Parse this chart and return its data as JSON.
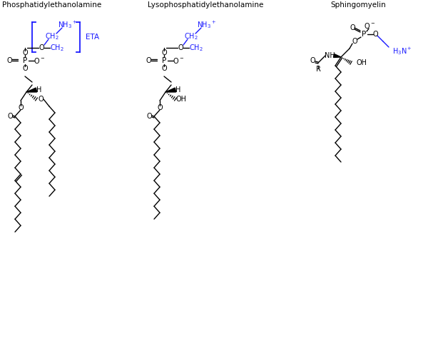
{
  "bg_color": "#ffffff",
  "black": "#000000",
  "blue": "#1a1aff",
  "figsize": [
    6.0,
    5.03
  ],
  "dpi": 100,
  "labels": {
    "PE": "Phosphatidylethanolamine",
    "LPE": "Lysophosphatidylethanolamine",
    "SM": "Sphingomyelin"
  },
  "sw": 8,
  "sh": 9
}
